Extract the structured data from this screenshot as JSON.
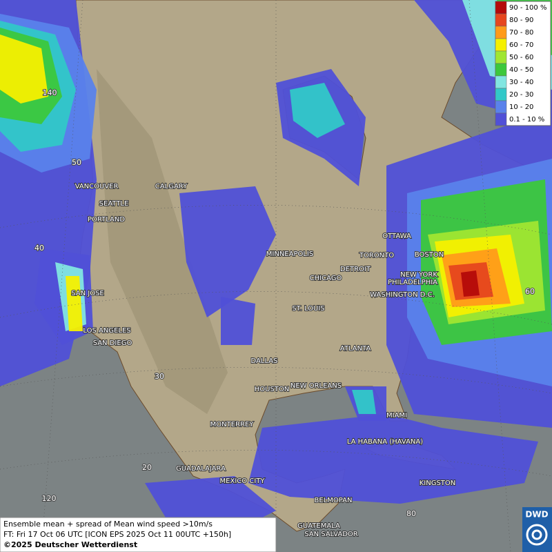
{
  "legend": {
    "items": [
      {
        "label": "90 - 100 %",
        "color": "#b40a0a"
      },
      {
        "label": "80 - 90",
        "color": "#e6461e"
      },
      {
        "label": "70 - 80",
        "color": "#ff9b19"
      },
      {
        "label": "60 - 70",
        "color": "#f5f000"
      },
      {
        "label": "50 - 60",
        "color": "#a0e632"
      },
      {
        "label": "40 - 50",
        "color": "#3cc83c"
      },
      {
        "label": "30 - 40",
        "color": "#82e6e1"
      },
      {
        "label": "20 - 30",
        "color": "#32c8c8"
      },
      {
        "label": "10 - 20",
        "color": "#5a82eb"
      },
      {
        "label": "0.1 - 10 %",
        "color": "#5050d7"
      }
    ]
  },
  "cities": [
    "VANCOUVER",
    "CALGARY",
    "SEATTLE",
    "PORTLAND",
    "MINNEAPOLIS",
    "OTTAWA",
    "TORONTO",
    "BOSTON",
    "DETROIT",
    "NEW YORK",
    "CHICAGO",
    "PHILADELPHIA",
    "SAN JOSE",
    "WASHINGTON D.C.",
    "ST. LOUIS",
    "LOS ANGELES",
    "SAN DIEGO",
    "ATLANTA",
    "DALLAS",
    "HOUSTON",
    "NEW ORLEANS",
    "MIAMI",
    "MONTERREY",
    "LA HABANA (HAVANA)",
    "GUADALAJARA",
    "MEXICO CITY",
    "KINGSTON",
    "BELMOPAN",
    "GUATEMALA",
    "SAN SALVADOR"
  ],
  "grid_labels": [
    "140",
    "50",
    "40",
    "60",
    "30",
    "20",
    "120",
    "80"
  ],
  "footer": {
    "line1": "Ensemble mean + spread of Mean wind speed >10m/s",
    "line2": "FT: Fri 17 Oct 06 UTC [ICON EPS 2025 Oct 11 00UTC +150h]",
    "line3": "©2025 Deutscher Wetterdienst"
  },
  "logo": "DWD"
}
